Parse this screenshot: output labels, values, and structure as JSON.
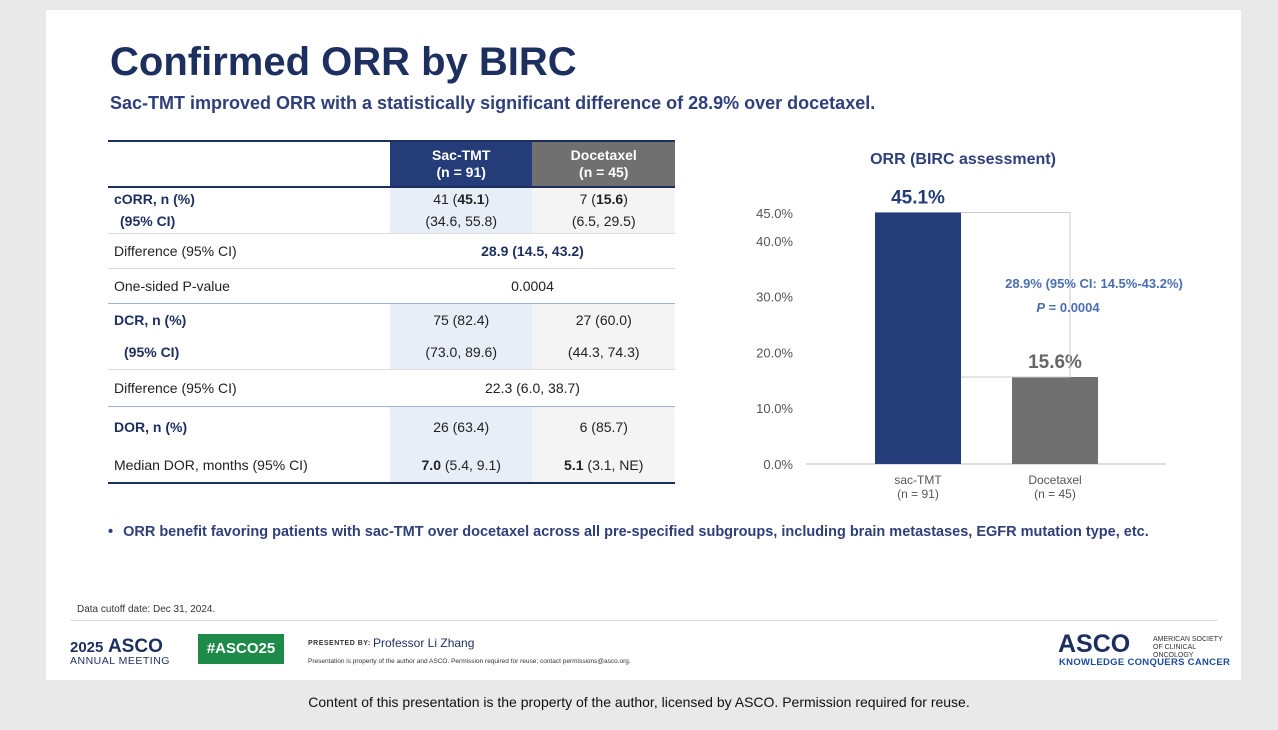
{
  "title": "Confirmed ORR by BIRC",
  "subtitle": "Sac-TMT improved ORR with a statistically significant difference of 28.9% over docetaxel.",
  "table": {
    "col1_name": "Sac-TMT",
    "col1_n": "(n = 91)",
    "col2_name": "Docetaxel",
    "col2_n": "(n = 45)",
    "corr_label": "cORR, n (%)",
    "corr_ci_label": "(95% CI)",
    "corr_sac_pre": "41 (",
    "corr_sac_bold": "45.1",
    "corr_sac_post": ")",
    "corr_sac_ci": "(34.6, 55.8)",
    "corr_doc_pre": "7 (",
    "corr_doc_bold": "15.6",
    "corr_doc_post": ")",
    "corr_doc_ci": "(6.5, 29.5)",
    "diff_label": "Difference (95% CI)",
    "corr_diff": "28.9 (14.5, 43.2)",
    "p_label": "One-sided P-value",
    "p_value": "0.0004",
    "dcr_label": "DCR, n (%)",
    "dcr_ci_label": "(95% CI)",
    "dcr_sac": "75 (82.4)",
    "dcr_sac_ci": "(73.0, 89.6)",
    "dcr_doc": "27 (60.0)",
    "dcr_doc_ci": "(44.3, 74.3)",
    "dcr_diff_label": "Difference (95% CI)",
    "dcr_diff": "22.3 (6.0, 38.7)",
    "dor_label": "DOR, n (%)",
    "dor_sac": "26 (63.4)",
    "dor_doc": "6 (85.7)",
    "median_label": "Median DOR, months (95% CI)",
    "median_sac_bold": "7.0",
    "median_sac_rest": " (5.4, 9.1)",
    "median_doc_bold": "5.1",
    "median_doc_rest": " (3.1, NE)"
  },
  "chart_data": {
    "type": "bar",
    "title": "ORR (BIRC assessment)",
    "categories": [
      "sac-TMT",
      "Docetaxel"
    ],
    "category_sublabels": [
      "(n = 91)",
      "(n = 45)"
    ],
    "values": [
      45.1,
      15.6
    ],
    "value_labels": [
      "45.1%",
      "15.6%"
    ],
    "colors": [
      "#243c78",
      "#707070"
    ],
    "ylim": [
      0,
      45
    ],
    "yticks": [
      0,
      10,
      20,
      30,
      40,
      45
    ],
    "ytick_labels": [
      "0.0%",
      "10.0%",
      "20.0%",
      "30.0%",
      "40.0%",
      "45.0%"
    ],
    "annotation_diff": "28.9% (95% CI: 14.5%-43.2%)",
    "annotation_p_italic": "P",
    "annotation_p_rest": " = 0.0004",
    "grid": false,
    "legend": "none"
  },
  "bullet": "ORR benefit favoring patients with sac-TMT over docetaxel across all pre-specified subgroups, including brain metastases, EGFR mutation type, etc.",
  "footer": {
    "cutoff": "Data cutoff date: Dec 31, 2024.",
    "year": "2025",
    "asco": "ASCO",
    "annual": "ANNUAL MEETING",
    "hashtag": "#ASCO25",
    "presented_by": "PRESENTED BY:",
    "presenter": "Professor Li Zhang",
    "property_note": "Presentation is property of the author and ASCO. Permission required for reuse; contact permissions@asco.org.",
    "asco_right": "ASCO",
    "society": "AMERICAN SOCIETY OF CLINICAL ONCOLOGY",
    "tagline": "KNOWLEDGE CONQUERS CANCER"
  },
  "bottom_note": "Content of this presentation is the property of the author, licensed by ASCO. Permission required for reuse."
}
